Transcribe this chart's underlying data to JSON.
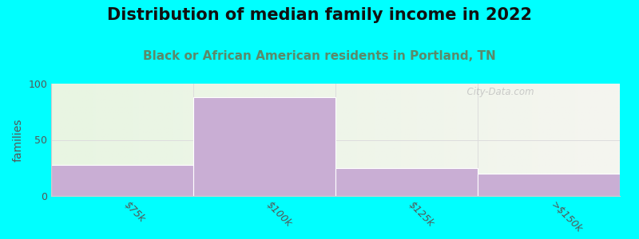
{
  "title": "Distribution of median family income in 2022",
  "subtitle": "Black or African American residents in Portland, TN",
  "title_fontsize": 15,
  "subtitle_fontsize": 11,
  "ylabel": "families",
  "ylabel_fontsize": 10,
  "categories": [
    "$75k",
    "$100k",
    "$125k",
    ">$150k"
  ],
  "values": [
    28,
    88,
    25,
    20
  ],
  "bar_color": "#c9aed4",
  "bar_edge_color": "#ffffff",
  "background_color": "#00ffff",
  "bg_color_left": "#e8f5e2",
  "bg_color_right": "#f5f5f0",
  "ylim": [
    0,
    100
  ],
  "yticks": [
    0,
    50,
    100
  ],
  "tick_label_fontsize": 9,
  "watermark": "  City-Data.com",
  "bar_width": 1.0,
  "bar_positions": [
    0,
    1,
    2,
    3
  ],
  "subtitle_color": "#5a8a6a",
  "title_color": "#111111",
  "separator_color": "#dddddd",
  "spine_color": "#cccccc"
}
